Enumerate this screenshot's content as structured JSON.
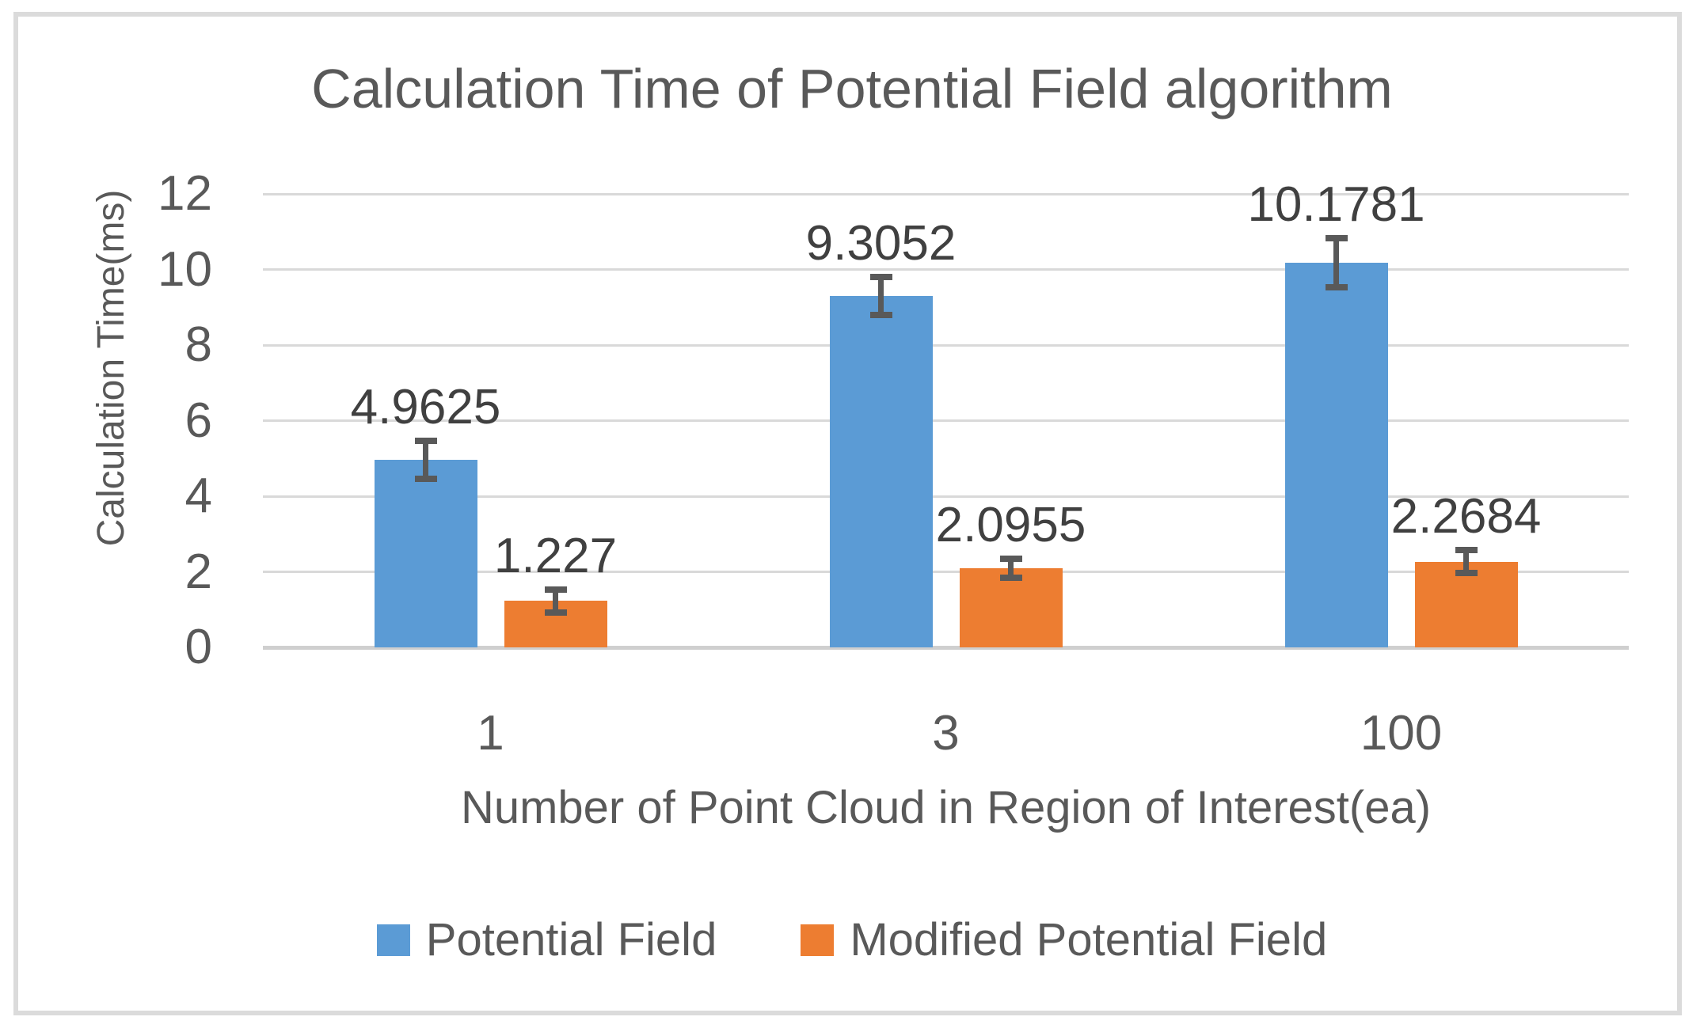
{
  "chart_data": {
    "type": "bar",
    "title": "Calculation Time of Potential Field algorithm",
    "xlabel": "Number of Point Cloud in Region of Interest(ea)",
    "ylabel": "Calculation Time(ms)",
    "categories": [
      "1",
      "3",
      "100"
    ],
    "series": [
      {
        "name": "Potential Field",
        "color": "#5B9BD5",
        "values": [
          4.9625,
          9.3052,
          10.1781
        ],
        "data_labels": [
          "4.9625",
          "9.3052",
          "10.1781"
        ],
        "errors": [
          0.5,
          0.5,
          0.65
        ]
      },
      {
        "name": "Modified Potential Field",
        "color": "#ED7D31",
        "values": [
          1.227,
          2.0955,
          2.2684
        ],
        "data_labels": [
          "1.227",
          "2.0955",
          "2.2684"
        ],
        "errors": [
          0.3,
          0.25,
          0.3
        ]
      }
    ],
    "ylim": [
      0,
      12
    ],
    "yticks": [
      "0",
      "2",
      "4",
      "6",
      "8",
      "10",
      "12"
    ],
    "grid": "horizontal",
    "error_bars": true,
    "legend_position": "bottom",
    "colors": {
      "text": "#595959",
      "data_label_text": "#404040",
      "gridline": "#D9D9D9",
      "baseline": "#CFCFCF",
      "error_bar": "#595959",
      "frame_border": "#DBDBDB",
      "background": "#FFFFFF"
    }
  }
}
